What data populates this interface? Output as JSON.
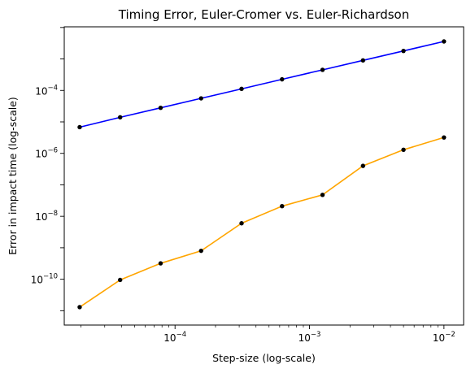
{
  "chart_data": {
    "type": "line",
    "title": "Timing Error, Euler-Cromer vs. Euler-Richardson",
    "xlabel": "Step-size (log-scale)",
    "ylabel": "Error in impact time (log-scale)",
    "xscale": "log",
    "yscale": "log",
    "xlim": [
      1.5e-05,
      0.014
    ],
    "ylim": [
      3.5e-12,
      0.0105
    ],
    "grid": false,
    "x_ticks": [
      {
        "value": 0.0001,
        "base": "10",
        "exp": "−4"
      },
      {
        "value": 0.001,
        "base": "10",
        "exp": "−3"
      },
      {
        "value": 0.01,
        "base": "10",
        "exp": "−2"
      }
    ],
    "y_ticks": [
      {
        "value": 1e-10,
        "base": "10",
        "exp": "−10"
      },
      {
        "value": 1e-08,
        "base": "10",
        "exp": "−8"
      },
      {
        "value": 1e-06,
        "base": "10",
        "exp": "−6"
      },
      {
        "value": 0.0001,
        "base": "10",
        "exp": "−4"
      }
    ],
    "x": [
      1.953e-05,
      3.906e-05,
      7.813e-05,
      0.00015625,
      0.0003125,
      0.000625,
      0.00125,
      0.0025,
      0.005,
      0.01
    ],
    "series": [
      {
        "color": "#0000ff",
        "values": [
          6.8e-06,
          1.4e-05,
          2.8e-05,
          5.6e-05,
          0.000112,
          0.000225,
          0.00045,
          0.0009,
          0.0018,
          0.0036
        ]
      },
      {
        "color": "#ffa500",
        "values": [
          1.3e-11,
          9.5e-11,
          3.2e-10,
          8e-10,
          6e-09,
          2.1e-08,
          4.8e-08,
          4e-07,
          1.3e-06,
          3.2e-06
        ]
      }
    ],
    "marker_color": "#000000"
  }
}
